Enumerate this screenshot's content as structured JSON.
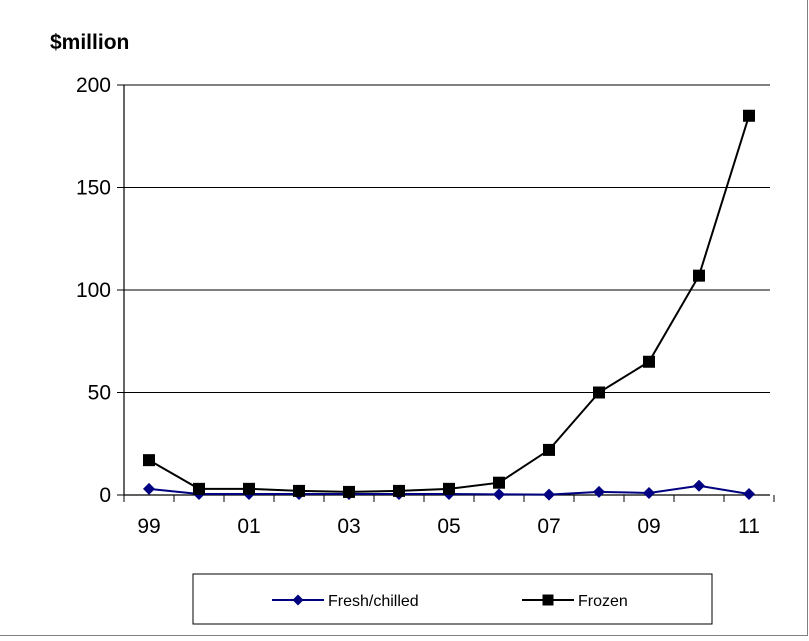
{
  "chart_data": {
    "type": "line",
    "title": "",
    "ylabel": "$million",
    "xlabel": "",
    "categories": [
      "99",
      "00",
      "01",
      "02",
      "03",
      "04",
      "05",
      "06",
      "07",
      "08",
      "09",
      "10",
      "11"
    ],
    "x_tick_labels": [
      "99",
      "01",
      "03",
      "05",
      "07",
      "09",
      "11"
    ],
    "y_tick_labels": [
      "0",
      "50",
      "100",
      "150",
      "200"
    ],
    "ylim": [
      0,
      200
    ],
    "y_ticks": [
      0,
      50,
      100,
      150,
      200
    ],
    "grid": "horizontal",
    "legend_position": "bottom",
    "series": [
      {
        "name": "Fresh/chilled",
        "color": "#000080",
        "marker": "diamond",
        "values": [
          3,
          0.5,
          0.5,
          0.5,
          0.5,
          0.5,
          0.5,
          0.3,
          0.2,
          1.5,
          1,
          4.5,
          0.5
        ]
      },
      {
        "name": "Frozen",
        "color": "#000000",
        "marker": "square",
        "values": [
          17,
          3,
          3,
          2,
          1.5,
          2,
          3,
          6,
          22,
          50,
          65,
          107,
          185
        ]
      }
    ]
  }
}
